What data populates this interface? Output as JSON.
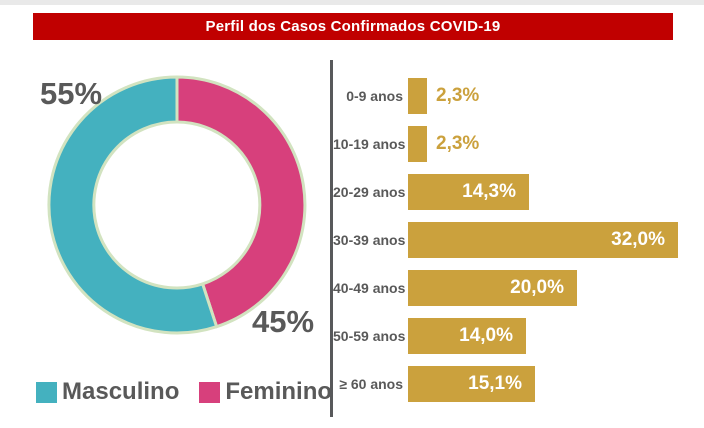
{
  "page": {
    "background": "#ffffff",
    "top_strip_color": "#e9e9e9"
  },
  "header": {
    "title": "Perfil dos Casos Confirmados COVID-19",
    "background": "#c00000",
    "text_color": "#ffffff"
  },
  "colors": {
    "teal": "#44b1bf",
    "pink": "#d7407c",
    "gold": "#cba13d",
    "text_gray": "#595959",
    "slice_outline": "#d2e3c0",
    "divider": "#58595b"
  },
  "donut": {
    "callout_masculino": "55%",
    "callout_feminino": "45%",
    "slices": [
      {
        "label": "Feminino",
        "value": 45,
        "display": "45%",
        "color": "#d7407c"
      },
      {
        "label": "Masculino",
        "value": 55,
        "display": "55%",
        "color": "#44b1bf"
      }
    ],
    "legend": [
      {
        "label": "Masculino",
        "color": "#44b1bf"
      },
      {
        "label": "Feminino",
        "color": "#d7407c"
      }
    ]
  },
  "age_chart": {
    "max_value": 32,
    "rows": [
      {
        "label": "0-9 anos",
        "value": 2.3,
        "display": "2,3%"
      },
      {
        "label": "10-19 anos",
        "value": 2.3,
        "display": "2,3%"
      },
      {
        "label": "20-29 anos",
        "value": 14.3,
        "display": "14,3%"
      },
      {
        "label": "30-39 anos",
        "value": 32.0,
        "display": "32,0%"
      },
      {
        "label": "40-49 anos",
        "value": 20.0,
        "display": "20,0%"
      },
      {
        "label": "50-59 anos",
        "value": 14.0,
        "display": "14,0%"
      },
      {
        "label": "≥ 60 anos",
        "value": 15.1,
        "display": "15,1%"
      }
    ]
  },
  "chart_data": [
    {
      "type": "pie",
      "donut": true,
      "title": "Perfil dos Casos Confirmados COVID-19",
      "categories": [
        "Masculino",
        "Feminino"
      ],
      "values": [
        55,
        45
      ],
      "unit": "%",
      "colors": [
        "#44b1bf",
        "#d7407c"
      ],
      "data_labels": [
        "55%",
        "45%"
      ],
      "legend_position": "bottom",
      "start_angle_deg": 0,
      "direction": "clockwise"
    },
    {
      "type": "bar",
      "orientation": "horizontal",
      "title": "",
      "categories": [
        "0-9 anos",
        "10-19 anos",
        "20-29 anos",
        "30-39 anos",
        "40-49 anos",
        "50-59 anos",
        "≥ 60 anos"
      ],
      "values": [
        2.3,
        2.3,
        14.3,
        32.0,
        20.0,
        14.0,
        15.1
      ],
      "data_labels": [
        "2,3%",
        "2,3%",
        "14,3%",
        "32,0%",
        "20,0%",
        "14,0%",
        "15,1%"
      ],
      "unit": "%",
      "bar_color": "#cba13d",
      "xlim": [
        0,
        32
      ],
      "grid": false,
      "legend_position": "none"
    }
  ]
}
